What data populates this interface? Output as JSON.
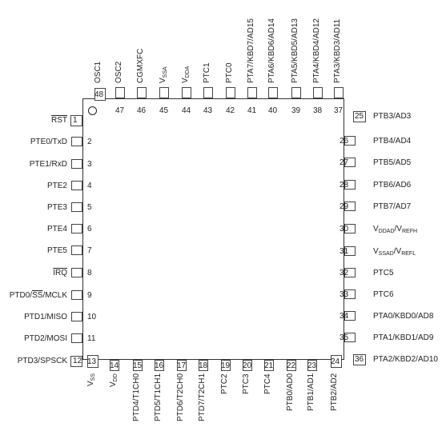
{
  "left_pins": [
    {
      "num": "1",
      "label": "RST"
    },
    {
      "num": "2",
      "label": "PTE0/TxD"
    },
    {
      "num": "3",
      "label": "PTE1/RxD"
    },
    {
      "num": "4",
      "label": "PTE2"
    },
    {
      "num": "5",
      "label": "PTE3"
    },
    {
      "num": "6",
      "label": "PTE4"
    },
    {
      "num": "7",
      "label": "PTE5"
    },
    {
      "num": "8",
      "label": "IRQ"
    },
    {
      "num": "9",
      "label": "PTD0/SS/MCLK"
    },
    {
      "num": "10",
      "label": "PTD1/MISO"
    },
    {
      "num": "11",
      "label": "PTD2/MOSI"
    },
    {
      "num": "12",
      "label": "PTD3/SPSCK"
    }
  ],
  "bottom_pins": [
    {
      "num": "13",
      "label": "VSS"
    },
    {
      "num": "14",
      "label": "VDD"
    },
    {
      "num": "15",
      "label": "PTD4/T1CH0"
    },
    {
      "num": "16",
      "label": "PTD5/T1CH1"
    },
    {
      "num": "17",
      "label": "PTD6/T2CH0"
    },
    {
      "num": "18",
      "label": "PTD7/T2CH1"
    },
    {
      "num": "19",
      "label": "PTC2"
    },
    {
      "num": "20",
      "label": "PTC3"
    },
    {
      "num": "21",
      "label": "PTC4"
    },
    {
      "num": "22",
      "label": "PTB0/AD0"
    },
    {
      "num": "23",
      "label": "PTB1/AD1"
    },
    {
      "num": "24",
      "label": "PTB2/AD2"
    }
  ],
  "right_pins": [
    {
      "num": "25",
      "label": "PTB3/AD3"
    },
    {
      "num": "26",
      "label": "PTB4/AD4"
    },
    {
      "num": "27",
      "label": "PTB5/AD5"
    },
    {
      "num": "28",
      "label": "PTB6/AD6"
    },
    {
      "num": "29",
      "label": "PTB7/AD7"
    },
    {
      "num": "30",
      "label": "VDDAD/VREFH"
    },
    {
      "num": "31",
      "label": "VSSAD/VREFL"
    },
    {
      "num": "32",
      "label": "PTC5"
    },
    {
      "num": "33",
      "label": "PTC6"
    },
    {
      "num": "34",
      "label": "PTA0/KBD0/AD8"
    },
    {
      "num": "35",
      "label": "PTA1/KBD1/AD9"
    },
    {
      "num": "36",
      "label": "PTA2/KBD2/AD10"
    }
  ],
  "top_pins": [
    {
      "num": "37",
      "label": "PTA3/KBD3/AD11"
    },
    {
      "num": "38",
      "label": "PTA4/KBD4/AD12"
    },
    {
      "num": "39",
      "label": "PTA5/KBD5/AD13"
    },
    {
      "num": "40",
      "label": "PTA6/KBD6/AD14"
    },
    {
      "num": "41",
      "label": "PTA7/KBD7/AD15"
    },
    {
      "num": "42",
      "label": "PTC0"
    },
    {
      "num": "43",
      "label": "PTC1"
    },
    {
      "num": "44",
      "label": "VDDA"
    },
    {
      "num": "45",
      "label": "VSSA"
    },
    {
      "num": "46",
      "label": "CGMXFC"
    },
    {
      "num": "47",
      "label": "OSC2"
    },
    {
      "num": "48",
      "label": "OSC1"
    }
  ]
}
